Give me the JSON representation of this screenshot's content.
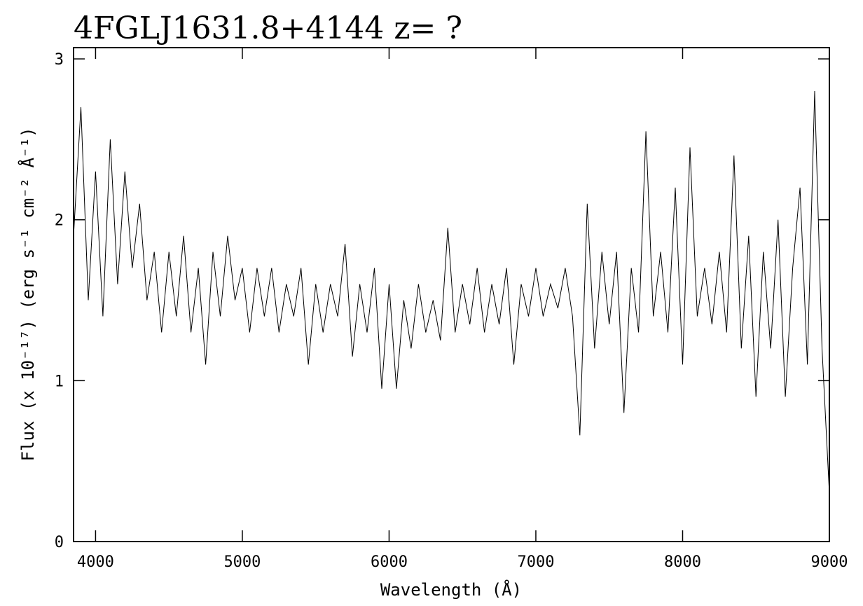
{
  "chart_data": {
    "type": "line",
    "title": "4FGLJ1631.8+4144 z= ?",
    "x_label": "Wavelength (Å)",
    "y_label": "Flux (x 10⁻¹⁷) (erg s⁻¹ cm⁻² Å⁻¹)",
    "x": [
      3850,
      3900,
      3950,
      4000,
      4050,
      4100,
      4150,
      4200,
      4250,
      4300,
      4350,
      4400,
      4450,
      4500,
      4550,
      4600,
      4650,
      4700,
      4750,
      4800,
      4850,
      4900,
      4950,
      5000,
      5050,
      5100,
      5150,
      5200,
      5250,
      5300,
      5350,
      5400,
      5450,
      5500,
      5550,
      5600,
      5650,
      5700,
      5750,
      5800,
      5850,
      5900,
      5950,
      6000,
      6050,
      6100,
      6150,
      6200,
      6250,
      6300,
      6350,
      6400,
      6450,
      6500,
      6550,
      6600,
      6650,
      6700,
      6750,
      6800,
      6850,
      6900,
      6950,
      7000,
      7050,
      7100,
      7150,
      7200,
      7250,
      7300,
      7350,
      7400,
      7450,
      7500,
      7550,
      7600,
      7650,
      7700,
      7750,
      7800,
      7850,
      7900,
      7950,
      8000,
      8050,
      8100,
      8150,
      8200,
      8250,
      8300,
      8350,
      8400,
      8450,
      8500,
      8550,
      8600,
      8650,
      8700,
      8750,
      8800,
      8850,
      8900,
      8950,
      9000
    ],
    "series": [
      {
        "color": "#000000",
        "values": [
          1.9,
          2.7,
          1.5,
          2.3,
          1.4,
          2.5,
          1.6,
          2.3,
          1.7,
          2.1,
          1.5,
          1.8,
          1.3,
          1.8,
          1.4,
          1.9,
          1.3,
          1.7,
          1.1,
          1.8,
          1.4,
          1.9,
          1.5,
          1.7,
          1.3,
          1.7,
          1.4,
          1.7,
          1.3,
          1.6,
          1.4,
          1.7,
          1.1,
          1.6,
          1.3,
          1.6,
          1.4,
          1.85,
          1.15,
          1.6,
          1.3,
          1.7,
          0.95,
          1.6,
          0.95,
          1.5,
          1.2,
          1.6,
          1.3,
          1.5,
          1.25,
          1.95,
          1.3,
          1.6,
          1.35,
          1.7,
          1.3,
          1.6,
          1.35,
          1.7,
          1.1,
          1.6,
          1.4,
          1.7,
          1.4,
          1.6,
          1.45,
          1.7,
          1.4,
          0.66,
          2.1,
          1.2,
          1.8,
          1.35,
          1.8,
          0.8,
          1.7,
          1.3,
          2.55,
          1.4,
          1.8,
          1.3,
          2.2,
          1.1,
          2.45,
          1.4,
          1.7,
          1.35,
          1.8,
          1.3,
          2.4,
          1.2,
          1.9,
          0.9,
          1.8,
          1.2,
          2.0,
          0.9,
          1.7,
          2.2,
          1.1,
          2.8,
          1.2,
          0.3
        ]
      }
    ],
    "xlim": [
      3850,
      9000
    ],
    "ylim": [
      0,
      3.07
    ],
    "xticks": [
      4000,
      5000,
      6000,
      7000,
      8000,
      9000
    ],
    "yticks": [
      0,
      1,
      2,
      3
    ]
  }
}
